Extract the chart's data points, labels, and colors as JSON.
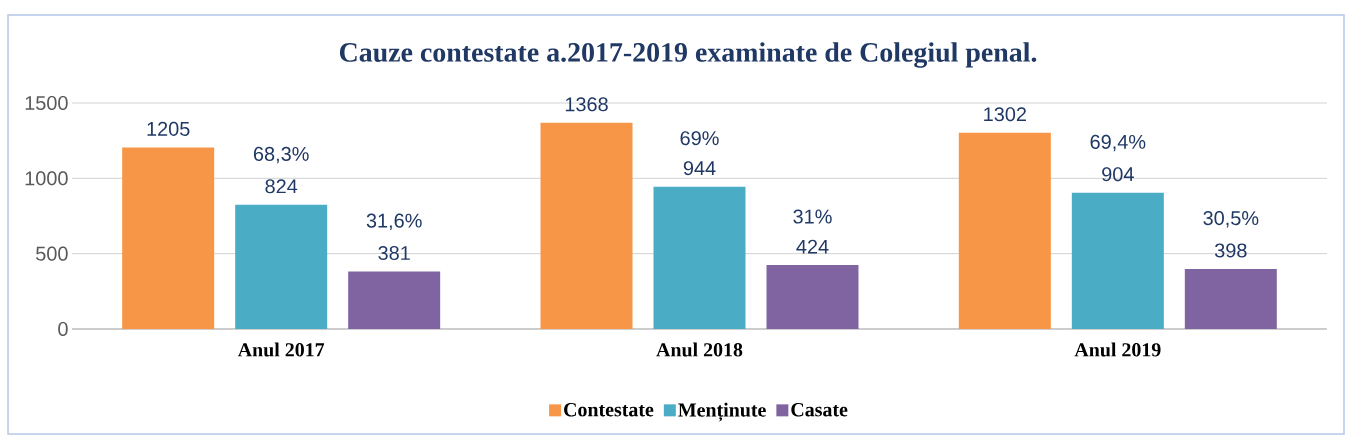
{
  "chart_data": {
    "type": "bar",
    "title": "Cauze contestate a.2017-2019 examinate de Colegiul penal.",
    "categories": [
      "Anul 2017",
      "Anul 2018",
      "Anul 2019"
    ],
    "series": [
      {
        "name": "Contestate",
        "color": "#f79646",
        "values": [
          1205,
          1368,
          1302
        ]
      },
      {
        "name": "Menținute",
        "color": "#4bacc6",
        "values": [
          824,
          944,
          904
        ]
      },
      {
        "name": "Casate",
        "color": "#8064a2",
        "values": [
          381,
          424,
          398
        ]
      }
    ],
    "ylim": [
      0,
      1500
    ],
    "yticks": [
      0,
      500,
      1000,
      1500
    ],
    "grid": "y",
    "legend": "bottom",
    "data_labels": true,
    "annotations": [
      "68,3%",
      "69%",
      "69,4%",
      "31,6%",
      "31%",
      "30,5%"
    ]
  }
}
